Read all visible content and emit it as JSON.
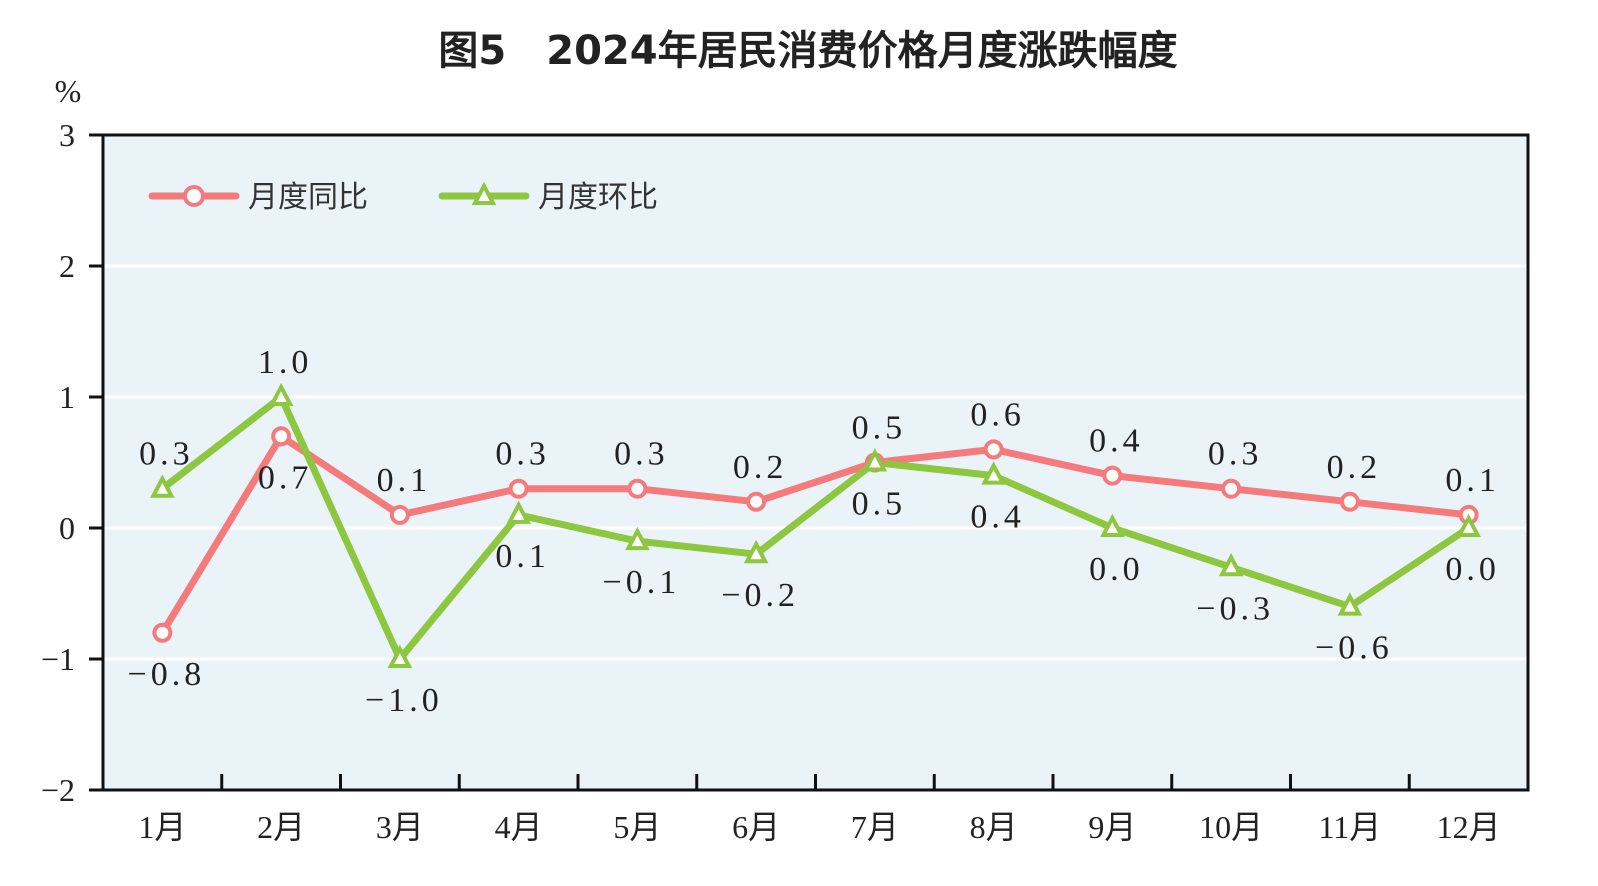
{
  "chart_data": {
    "type": "line",
    "title": "图5　2024年居民消费价格月度涨跌幅度",
    "ylabel": "%",
    "ylim": [
      -2,
      3
    ],
    "yticks": [
      3,
      2,
      1,
      0,
      -1,
      -2
    ],
    "categories": [
      "1月",
      "2月",
      "3月",
      "4月",
      "5月",
      "6月",
      "7月",
      "8月",
      "9月",
      "10月",
      "11月",
      "12月"
    ],
    "grid": true,
    "legend_position": "top-left",
    "series": [
      {
        "name": "月度同比",
        "color": "#f47a7c",
        "marker": "circle",
        "values": [
          -0.8,
          0.7,
          0.1,
          0.3,
          0.3,
          0.2,
          0.5,
          0.6,
          0.4,
          0.3,
          0.2,
          0.1
        ]
      },
      {
        "name": "月度环比",
        "color": "#8dc63f",
        "marker": "triangle",
        "values": [
          0.3,
          1.0,
          -1.0,
          0.1,
          -0.1,
          -0.2,
          0.5,
          0.4,
          0.0,
          -0.3,
          -0.6,
          0.0
        ]
      }
    ],
    "plot_background": "#eaf4f8"
  }
}
